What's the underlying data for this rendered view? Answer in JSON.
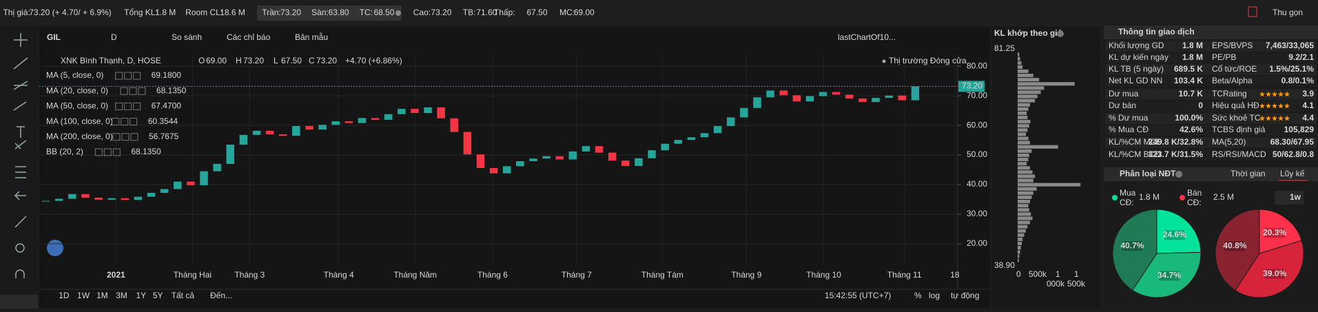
{
  "top_bar": {
    "items": [
      {
        "label": "Thị giá:",
        "value": "73.20 (+ 4.70/ + 6.9%)",
        "color": "#e040fb"
      },
      {
        "label": "Tổng KL:",
        "value": "1.8 M",
        "color": "#e8e8e8"
      },
      {
        "label": "Room CL:",
        "value": "18.6 M",
        "color": "#e8e8e8"
      },
      {
        "label": "Trần:",
        "value": "73.20",
        "color": "#e040fb"
      },
      {
        "label": "Sàn:",
        "value": "63.80",
        "color": "#26c6da"
      },
      {
        "label": "TC:",
        "value": "68.50",
        "color": "#f0b90b"
      },
      {
        "label": "Cao:",
        "value": "73.20",
        "color": "#e040fb"
      },
      {
        "label": "TB:",
        "value": "71.60",
        "color": "#2ecc71"
      },
      {
        "label": "Thấp:",
        "value": "67.50",
        "color": "#f23645"
      },
      {
        "label": "MC:",
        "value": "69.00",
        "color": "#8bd45a"
      }
    ],
    "collapse": "Thu gọn"
  },
  "toolbar": {
    "symbol": "GIL",
    "interval": "D",
    "buttons": [
      "So sánh",
      "Các chỉ báo",
      "Bản mẫu"
    ],
    "layout": "lastChartOf10..."
  },
  "chart_data": {
    "type": "candlestick",
    "title": "XNK Bình Thạnh, D, HOSE",
    "ohlc": [
      {
        "label": "O",
        "value": "69.00"
      },
      {
        "label": "H",
        "value": "73.20"
      },
      {
        "label": "L",
        "value": "67.50"
      },
      {
        "label": "C",
        "value": "73.20"
      }
    ],
    "change": "+4.70 (+6.86%)",
    "status": "Thị trường Đóng cửa",
    "indicators": [
      {
        "name": "MA (5, close, 0)",
        "value": "69.1800",
        "color": "#ff9800"
      },
      {
        "name": "MA (20, close, 0)",
        "value": "68.1350",
        "color": "#4fc3f7"
      },
      {
        "name": "MA (50, close, 0)",
        "value": "67.4700",
        "color": "#ffd54f"
      },
      {
        "name": "MA (100, close, 0)",
        "value": "60.3544",
        "color": "#7e57c2"
      },
      {
        "name": "MA (200, close, 0)",
        "value": "56.7675",
        "color": "#ab47bc"
      },
      {
        "name": "BB (20, 2)",
        "value": "68.1350",
        "color": "#f23645"
      }
    ],
    "categories": [
      "2021",
      "Tháng Hai",
      "Tháng 3",
      "Tháng 4",
      "Tháng Năm",
      "Tháng 6",
      "Tháng 7",
      "Tháng Tám",
      "Tháng 9",
      "Tháng 10",
      "Tháng 11",
      "18"
    ],
    "close": [
      34.5,
      35.2,
      36.8,
      35.6,
      34.9,
      35.4,
      34.8,
      35.9,
      37.2,
      38.5,
      41.0,
      39.8,
      44.5,
      47.0,
      53.5,
      56.8,
      58.2,
      57.0,
      56.5,
      59.8,
      58.6,
      60.2,
      61.4,
      60.8,
      62.5,
      61.9,
      63.8,
      65.6,
      64.2,
      66.1,
      62.4,
      57.8,
      50.2,
      45.6,
      43.8,
      46.2,
      47.9,
      48.8,
      49.6,
      48.5,
      51.2,
      53.0,
      50.8,
      48.1,
      46.3,
      48.9,
      51.6,
      53.8,
      55.1,
      56.0,
      57.4,
      59.8,
      62.7,
      65.9,
      69.5,
      71.8,
      70.2,
      68.1,
      69.9,
      71.3,
      70.4,
      69.1,
      67.9,
      69.3,
      70.1,
      68.5,
      73.2
    ],
    "up_color": "#26a69a",
    "down_color": "#f23645",
    "ylim": [
      13,
      84
    ],
    "yticks": [
      {
        "value": 20,
        "label": "20.00"
      },
      {
        "value": 30,
        "label": "30.00"
      },
      {
        "value": 40,
        "label": "40.00"
      },
      {
        "value": 50,
        "label": "50.00"
      },
      {
        "value": 60,
        "label": "60.00"
      },
      {
        "value": 70,
        "label": "70.00"
      },
      {
        "value": 80,
        "label": "80.00"
      }
    ],
    "last_price": {
      "value": 73.2,
      "label": "73.20"
    },
    "grid": true
  },
  "bottom_bar": {
    "ranges": [
      "1D",
      "1W",
      "1M",
      "3M",
      "1Y",
      "5Y",
      "Tất cả"
    ],
    "goto": "Đến...",
    "time": "15:42:55 (UTC+7)",
    "percent": "%",
    "log": "log",
    "auto": "tự động"
  },
  "volume_profile": {
    "title": "KL khớp theo giá",
    "price_top": "81.25",
    "price_bottom": "38.90",
    "xlim": [
      0,
      1950
    ],
    "axis_top": [
      "0",
      "500k",
      "1",
      "1"
    ],
    "axis_bottom": [
      "000k",
      "500k"
    ],
    "values": [
      40,
      60,
      90,
      120,
      260,
      380,
      520,
      1380,
      640,
      560,
      480,
      420,
      300,
      260,
      220,
      240,
      310,
      280,
      240,
      200,
      260,
      300,
      980,
      340,
      280,
      260,
      220,
      300,
      360,
      420,
      380,
      1520,
      460,
      380,
      340,
      300,
      260,
      280,
      320,
      360,
      300,
      240,
      200,
      160,
      120,
      100,
      80,
      60,
      40,
      30
    ]
  },
  "trade_info": {
    "title": "Thông tin giao dịch",
    "rows": [
      [
        {
          "label": "Khối lượng GD",
          "value": "1.8 M"
        },
        {
          "label": "EPS/BVPS",
          "value": "7,463/33,065"
        }
      ],
      [
        {
          "label": "KL dự kiến ngày",
          "value": "1.8 M"
        },
        {
          "label": "PE/PB",
          "value": "9.2/2.1"
        }
      ],
      [
        {
          "label": "KL TB (5 ngày)",
          "value": "689.5 K"
        },
        {
          "label": "Cổ tức/ROE",
          "value": "1.5%/25.1%"
        }
      ],
      [
        {
          "label": "Net KL GD NN",
          "value": "103.4 K"
        },
        {
          "label": "Beta/Alpha",
          "value": "0.8/0.1%",
          "color": "#2ecc71"
        }
      ],
      [
        {
          "label": "Dư mua",
          "value": "10.7 K",
          "color": "#2ecc71"
        },
        {
          "label": "TCRating",
          "value": "3.9",
          "stars": true
        }
      ],
      [
        {
          "label": "Dư bán",
          "value": "0",
          "color": "#f23645"
        },
        {
          "label": "Hiệu quả HĐ",
          "value": "4.1",
          "stars": true
        }
      ],
      [
        {
          "label": "% Dư mua",
          "value": "100.0%",
          "color": "#2ecc71"
        },
        {
          "label": "Sức khoẻ TC",
          "value": "4.4",
          "stars": true
        }
      ],
      [
        {
          "label": "% Mua CĐ",
          "value": "42.6%",
          "color": "#f23645"
        },
        {
          "label": "TCBS định giá",
          "value": "105,829"
        }
      ],
      [
        {
          "label": "KL/%CM MCĐ",
          "value": "249.8 K/32.8%"
        },
        {
          "label": "MA(5,20)",
          "value": "68.30/67.95",
          "color": "#2ecc71"
        }
      ],
      [
        {
          "label": "KL/%CM BCĐ",
          "value": "323.7 K/31.5%"
        },
        {
          "label": "RS/RSI/MACD",
          "value": "50/62.8/0.8"
        }
      ]
    ]
  },
  "investor": {
    "title": "Phân loại NĐT",
    "tabs": [
      "Thời gian",
      "Lũy kế"
    ],
    "buy_label": [
      "Mua",
      "CĐ:"
    ],
    "buy_value": "1.8 M",
    "sell_label": [
      "Bán",
      "CĐ:"
    ],
    "sell_value": "2.5 M",
    "period": "1w",
    "pies": [
      {
        "type": "pie",
        "values": [
          24.6,
          34.7,
          40.7
        ],
        "value_labels": [
          "24.6%",
          "34.7%",
          "40.7%"
        ],
        "colors": [
          "#00e39a",
          "#19b97c",
          "#1f7a56"
        ]
      },
      {
        "type": "pie",
        "values": [
          20.3,
          39.0,
          40.8
        ],
        "value_labels": [
          "20.3%",
          "39.0%",
          "40.8%"
        ],
        "colors": [
          "#ff3049",
          "#d8243b",
          "#8a2330"
        ]
      }
    ]
  }
}
